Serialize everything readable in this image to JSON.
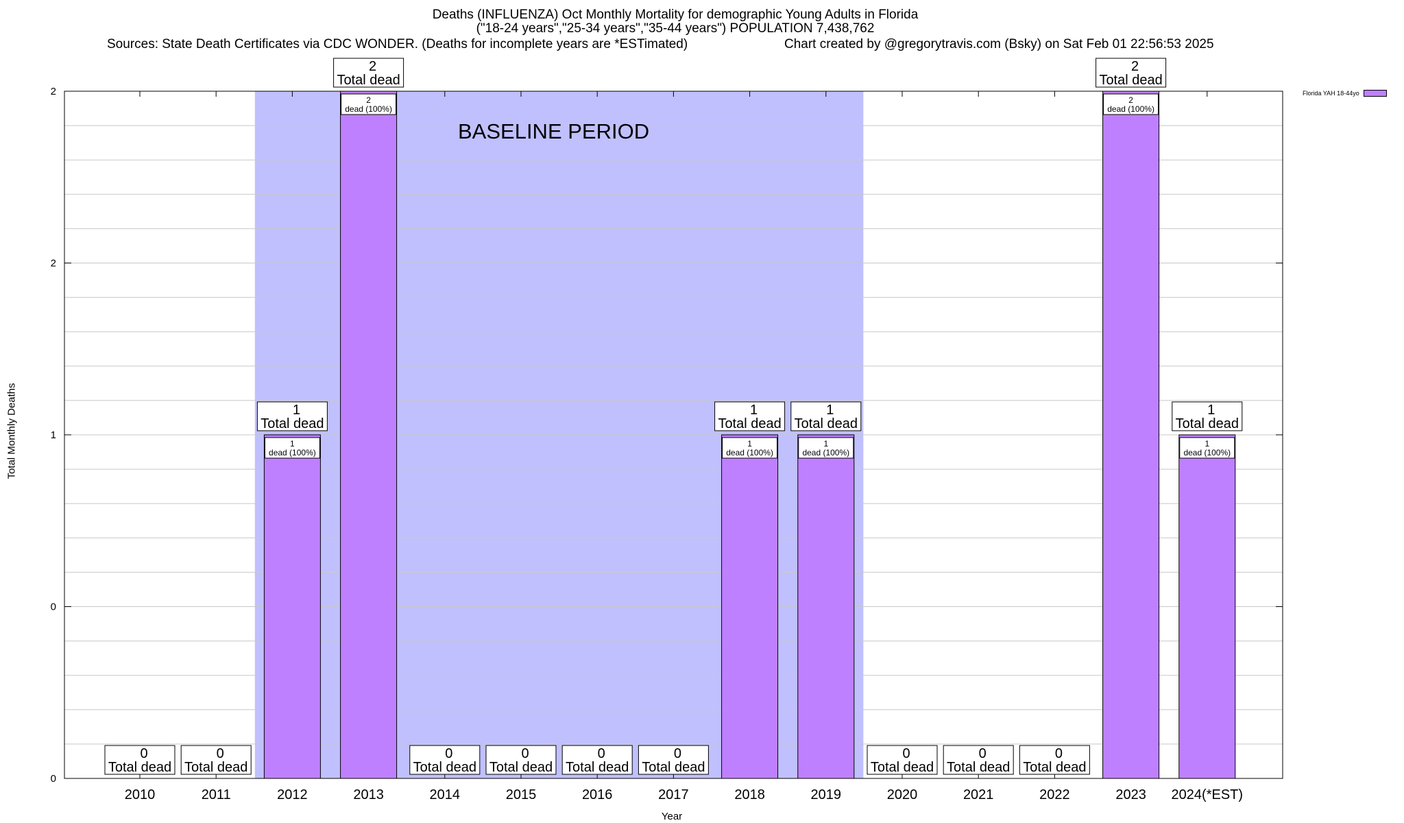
{
  "title": {
    "line1": "Deaths (INFLUENZA) Oct Monthly Mortality for demographic Young Adults in Florida",
    "line2": "(\"18-24 years\",\"25-34 years\",\"35-44 years\") POPULATION 7,438,762",
    "sources": "Sources: State Death Certificates via CDC WONDER. (Deaths for incomplete years are *ESTimated)",
    "credit": "Chart created by @gregorytravis.com (Bsky) on Sat Feb 01 22:56:53 2025"
  },
  "baseline_label": "BASELINE PERIOD",
  "colors": {
    "bar": "#bf80ff",
    "baseline_shade": "#c0c0ff",
    "grid": "#c8c8c8"
  },
  "chart_data": {
    "type": "bar",
    "xlabel": "Year",
    "ylabel": "Total Monthly Deaths",
    "ylim": [
      0,
      2
    ],
    "y_tick_labels": [
      "0",
      "0",
      "1",
      "2",
      "2"
    ],
    "grid": true,
    "legend_position": "top-right",
    "categories": [
      "2010",
      "2011",
      "2012",
      "2013",
      "2014",
      "2015",
      "2016",
      "2017",
      "2018",
      "2019",
      "2020",
      "2021",
      "2022",
      "2023",
      "2024(*EST)"
    ],
    "series": [
      {
        "name": "Florida YAH 18-44yo",
        "values": [
          0,
          0,
          1,
          2,
          0,
          0,
          0,
          0,
          1,
          1,
          0,
          0,
          0,
          2,
          1
        ]
      }
    ],
    "total_label": "Total dead",
    "inner_label": "dead (100%)",
    "baseline_period": [
      "2012",
      "2019"
    ]
  }
}
